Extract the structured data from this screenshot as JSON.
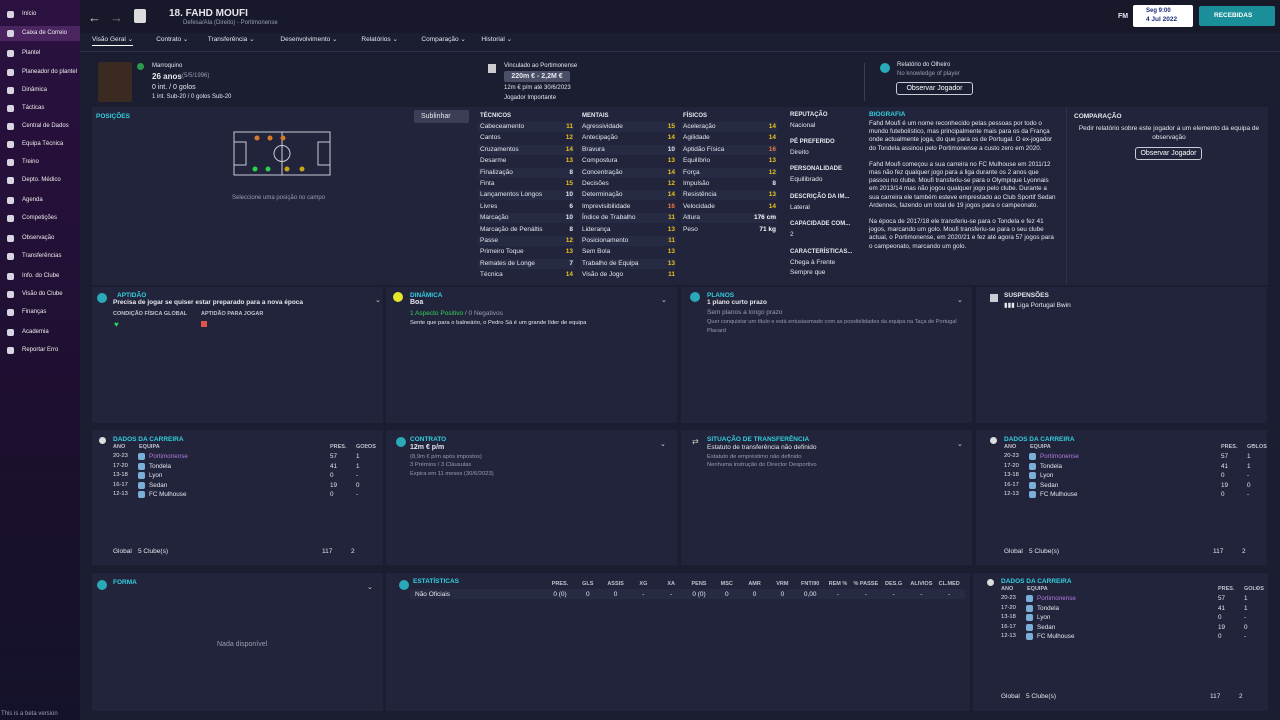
{
  "sidebar": {
    "items": [
      "Início",
      "Caixa de Correio",
      "Plantel",
      "Planeador do plantel",
      "Dinâmica",
      "Tácticas",
      "Central de Dados",
      "Equipa Técnica",
      "Treino",
      "Depto. Médico",
      "Agenda",
      "Competições",
      "Observação",
      "Transferências",
      "Info. do Clube",
      "Visão do Clube",
      "Finanças",
      "Academia",
      "Reportar Erro"
    ],
    "footer": "This is a beta version"
  },
  "header": {
    "title": "18. FAHD MOUFI",
    "subtitle": "Defesa/Ala (Direito) - Portimonense",
    "fm": "FM",
    "time": "Seg 9:00",
    "date": "4 Jul 2022",
    "inbox": "RECEBIDAS"
  },
  "tabs": [
    "Visão Geral",
    "Contrato",
    "Transferência",
    "Desenvolvimento",
    "Relatórios",
    "Comparação",
    "Historial"
  ],
  "player": {
    "nationality": "Marroquino",
    "age": "26 anos",
    "dob": "(5/5/1996)",
    "caps": "0 int. / 0 golos",
    "youth_caps": "1 int. Sub-20 / 0 golos Sub-20"
  },
  "contract_top": {
    "label": "Vinculado ao Portimonense",
    "value": "220m € - 2,2M €",
    "wage": "12m € p/m até 30/6/2023",
    "status": "Jogador Importante"
  },
  "scout": {
    "label": "Relatório do Olheiro",
    "text": "No knowledge of player",
    "button": "Observar Jogador"
  },
  "positions": {
    "title": "POSIÇÕES",
    "button": "Sublinhar",
    "hint": "Seleccione uma posição no campo"
  },
  "attributes": [
    {
      "title": "TÉCNICOS",
      "items": [
        [
          "Cabeceamento",
          11
        ],
        [
          "Cantos",
          12
        ],
        [
          "Cruzamentos",
          14
        ],
        [
          "Desarme",
          13
        ],
        [
          "Finalização",
          8
        ],
        [
          "Finta",
          15
        ],
        [
          "Lançamentos Longos",
          10
        ],
        [
          "Livres",
          6
        ],
        [
          "Marcação",
          10
        ],
        [
          "Marcação de Penáltis",
          8
        ],
        [
          "Passe",
          12
        ],
        [
          "Primeiro Toque",
          13
        ],
        [
          "Remates de Longe",
          7
        ],
        [
          "Técnica",
          14
        ]
      ]
    },
    {
      "title": "MENTAIS",
      "items": [
        [
          "Agressividade",
          15
        ],
        [
          "Antecipação",
          14
        ],
        [
          "Bravura",
          10
        ],
        [
          "Compostura",
          13
        ],
        [
          "Concentração",
          14
        ],
        [
          "Decisões",
          12
        ],
        [
          "Determinação",
          14
        ],
        [
          "Imprevisibilidade",
          16
        ],
        [
          "Índice de Trabalho",
          11
        ],
        [
          "Liderança",
          13
        ],
        [
          "Posicionamento",
          11
        ],
        [
          "Sem Bola",
          13
        ],
        [
          "Trabalho de Equipa",
          13
        ],
        [
          "Visão de Jogo",
          11
        ]
      ]
    },
    {
      "title": "FÍSICOS",
      "items": [
        [
          "Aceleração",
          14
        ],
        [
          "Agilidade",
          14
        ],
        [
          "Aptidão Física",
          16
        ],
        [
          "Equilíbrio",
          13
        ],
        [
          "Força",
          12
        ],
        [
          "Impulsão",
          8
        ],
        [
          "Resistência",
          13
        ],
        [
          "Velocidade",
          14
        ],
        [
          "Altura",
          "176 cm"
        ],
        [
          "Peso",
          "71 kg"
        ]
      ]
    }
  ],
  "info": [
    [
      "REPUTAÇÃO",
      "Nacional"
    ],
    [
      "PÉ PREFERIDO",
      "Direito"
    ],
    [
      "PERSONALIDADE",
      "Equilibrado"
    ],
    [
      "DESCRIÇÃO DA IM...",
      "Lateral"
    ],
    [
      "CAPACIDADE COM...",
      "2"
    ],
    [
      "CARACTERÍSTICAS...",
      "Chega à Frente"
    ]
  ],
  "info_more": "Sempre que",
  "biography": {
    "title": "BIOGRAFIA",
    "paragraphs": [
      "Fahd Moufi é um nome reconhecido pelas pessoas por todo o mundo futebolístico, mas principalmente mais para os da França onde actualmente joga, do que para os de Portugal. O ex-jogador do Tondela assinou pelo Portimonense a custo zero em 2020.",
      "Fahd Moufi começou a sua carreira no FC Mulhouse em 2011/12 mas não fez qualquer jogo para a liga durante os 2 anos que passou no clube. Moufi transferiu-se para o Olympique Lyonnais em 2013/14 mas não jogou qualquer jogo pelo clube. Durante a sua carreira ele também esteve emprestado ao Club Sportif Sedan Ardennes, fazendo um total de 19 jogos para o campeonato.",
      "Na época de 2017/18 ele transferiu-se para o Tondela e fez 41 jogos, marcando um golo. Moufi transferiu-se para o seu clube actual, o Portimonense, em 2020/21 e fez até agora 57 jogos para o campeonato, marcando um golo."
    ]
  },
  "comparison": {
    "title": "COMPARAÇÃO",
    "text": "Pedir relatório sobre este jogador a um elemento da equipa de observação",
    "button": "Observar Jogador"
  },
  "fitness": {
    "title": "APTIDÃO",
    "text": "Precisa de jogar se quiser estar preparado para a nova época",
    "label1": "CONDIÇÃO FÍSICA GLOBAL",
    "label2": "APTIDÃO PARA JOGAR"
  },
  "dynamics": {
    "title": "DINÂMICA",
    "value": "Boa",
    "positive": "1 Aspecto Positivo",
    "negative": "0 Negativos",
    "text": "Sente que para o balneário, o Pedro Sá é um grande líder de equipa"
  },
  "plans": {
    "title": "PLANOS",
    "short": "1 plano curto prazo",
    "long": "Sem planos a longo prazo",
    "text": "Quer conquistar um título e está entusiasmado com as possibilidades da equipa na Taça de Portugal Placard"
  },
  "suspensions": {
    "title": "SUSPENSÕES",
    "competition": "Liga Portugal Bwin"
  },
  "career": {
    "title": "DADOS DA CARREIRA",
    "headers": [
      "ANO",
      "EQUIPA",
      "PRES.",
      "GOLOS"
    ],
    "rows": [
      [
        "20-23",
        "Portimonense",
        57,
        1
      ],
      [
        "17-20",
        "Tondela",
        41,
        1
      ],
      [
        "13-18",
        "Lyon",
        0,
        "-"
      ],
      [
        "16-17",
        "Sedan",
        19,
        0
      ],
      [
        "12-13",
        "FC Mulhouse",
        0,
        "-"
      ]
    ],
    "total": [
      "Global",
      "5 Clube(s)",
      117,
      2
    ]
  },
  "contract": {
    "title": "CONTRATO",
    "wage": "12m € p/m",
    "net": "(8,9m € p/m após impostos)",
    "bonuses": "3 Prémios / 3 Cláusulas",
    "expiry": "Expira em 11 meses (30/6/2023)"
  },
  "transfer": {
    "title": "SITUAÇÃO DE TRANSFERÊNCIA",
    "status": "Estatuto de transferência não definido",
    "loan": "Estatuto de empréstimo não definido",
    "instruction": "Nenhuma instrução do Director Desportivo"
  },
  "form": {
    "title": "FORMA",
    "empty": "Nada disponível"
  },
  "stats": {
    "title": "ESTATÍSTICAS",
    "headers": [
      "PRES.",
      "GLS",
      "ASSIS",
      "XG",
      "XA",
      "PENS",
      "MSC",
      "AMR",
      "VRM",
      "FNT/90",
      "REM %",
      "% PASSE",
      "DES.G",
      "ALIVIOS",
      "CL.MED"
    ],
    "row_label": "Não Oficiais",
    "row": [
      "0 (0)",
      0,
      0,
      "-",
      "-",
      "0 (0)",
      0,
      0,
      0,
      "0,00",
      "-",
      "-",
      "-",
      "-",
      "-"
    ]
  }
}
